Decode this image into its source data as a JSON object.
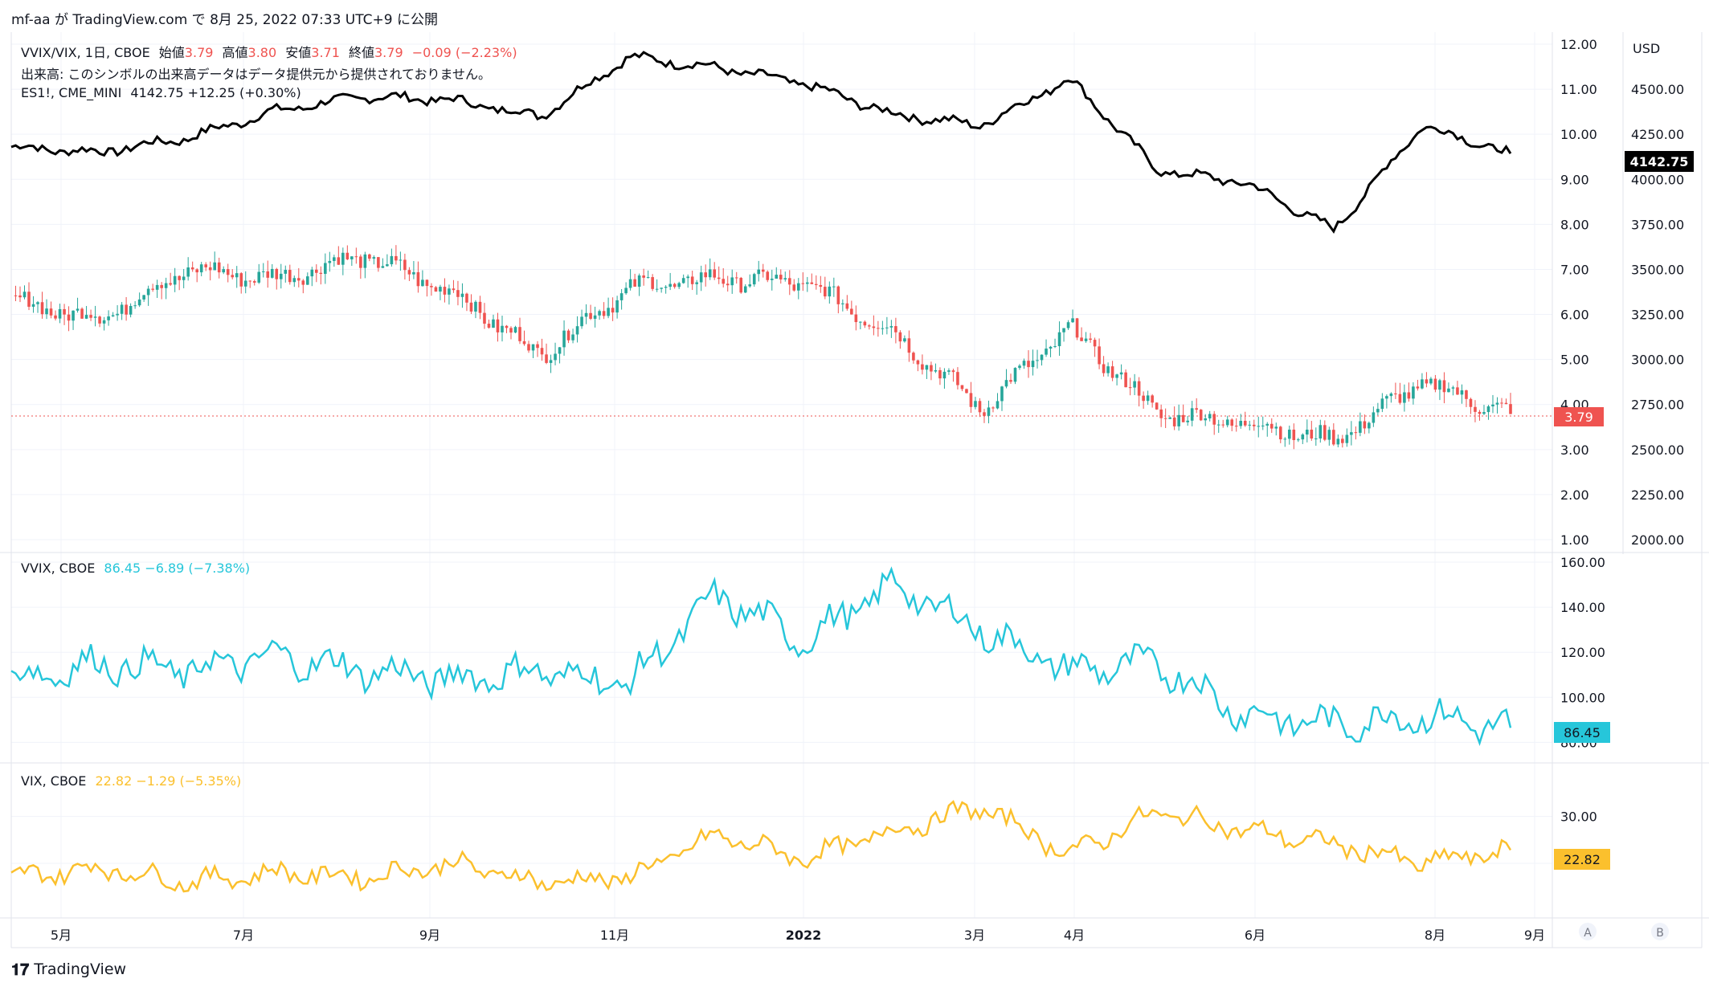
{
  "header": {
    "text": "mf-aa が TradingView.com で 8月 25, 2022 07:33 UTC+9 に公開"
  },
  "pane1": {
    "legend_title": "VVIX/VIX, 1日, CBOE",
    "ohlc": {
      "o_label": "始値",
      "o": "3.79",
      "h_label": "高値",
      "h": "3.80",
      "l_label": "安値",
      "l": "3.71",
      "c_label": "終値",
      "c": "3.79",
      "chg": "−0.09 (−2.23%)"
    },
    "volume_note": "出来高: このシンボルの出来高データはデータ提供元から提供されておりません。",
    "es_legend": "ES1!, CME_MINI",
    "es_value": "4142.75 +12.25 (+0.30%)",
    "last_label": "3.79",
    "es_last_label": "4142.75",
    "currency": "USD"
  },
  "pane2": {
    "legend": "VVIX, CBOE",
    "value": "86.45 −6.89 (−7.38%)",
    "last_label": "86.45"
  },
  "pane3": {
    "legend": "VIX, CBOE",
    "value": "22.82 −1.29 (−5.35%)",
    "last_label": "22.82"
  },
  "footer": {
    "brand": "TradingView",
    "btn_a": "A",
    "btn_b": "B"
  },
  "colors": {
    "up": "#26a69a",
    "down": "#ef5350",
    "es": "#000000",
    "vvix": "#26c6da",
    "vix": "#fbc02d",
    "grid": "#f0f3fa"
  },
  "chart_data": [
    {
      "type": "line",
      "title": "VVIX/VIX, 1日, CBOE (candlestick) + ES1!, CME_MINI",
      "series": [
        {
          "name": "VVIX/VIX",
          "x": [
            "2021-04",
            "2021-05",
            "2021-06",
            "2021-07",
            "2021-08",
            "2021-09",
            "2021-10",
            "2021-11",
            "2021-12",
            "2022-01",
            "2022-02",
            "2022-03",
            "2022-04",
            "2022-05",
            "2022-06",
            "2022-07",
            "2022-08",
            "2022-08-25"
          ],
          "values": [
            6.3,
            5.9,
            7.0,
            6.8,
            7.3,
            6.5,
            5.1,
            6.6,
            6.8,
            6.7,
            5.6,
            3.9,
            5.7,
            3.8,
            3.6,
            3.2,
            4.5,
            3.79
          ]
        },
        {
          "name": "ES1!",
          "x": [
            "2021-04",
            "2021-05",
            "2021-06",
            "2021-07",
            "2021-08",
            "2021-09",
            "2021-10",
            "2021-11",
            "2021-12",
            "2022-01",
            "2022-02",
            "2022-03",
            "2022-04",
            "2022-05",
            "2022-06",
            "2022-07",
            "2022-08",
            "2022-08-25"
          ],
          "values": [
            4180,
            4150,
            4230,
            4380,
            4460,
            4440,
            4350,
            4680,
            4620,
            4530,
            4360,
            4300,
            4560,
            4050,
            3980,
            3720,
            4300,
            4142.75
          ]
        }
      ],
      "y_left_ticks": [
        "1.00",
        "2.00",
        "3.00",
        "4.00",
        "5.00",
        "6.00",
        "7.00",
        "8.00",
        "9.00",
        "10.00",
        "11.00",
        "12.00"
      ],
      "y_right_ticks": [
        "2000.00",
        "2250.00",
        "2500.00",
        "2750.00",
        "3000.00",
        "3250.00",
        "3500.00",
        "3750.00",
        "4000.00",
        "4250.00",
        "4500.00",
        "4750.00"
      ],
      "ylim_left": [
        1,
        12
      ],
      "ylim_right": [
        2000,
        4750
      ]
    },
    {
      "type": "line",
      "series": [
        {
          "name": "VVIX",
          "x": [
            "2021-04",
            "2021-05",
            "2021-06",
            "2021-07",
            "2021-08",
            "2021-09",
            "2021-10",
            "2021-11",
            "2021-12",
            "2022-01",
            "2022-02",
            "2022-03",
            "2022-04",
            "2022-05",
            "2022-06",
            "2022-07",
            "2022-08",
            "2022-08-25"
          ],
          "values": [
            108,
            115,
            112,
            118,
            112,
            108,
            112,
            106,
            145,
            125,
            150,
            130,
            112,
            115,
            92,
            88,
            92,
            86.45
          ]
        }
      ],
      "y_ticks": [
        "80.00",
        "100.00",
        "120.00",
        "140.00",
        "160.00"
      ],
      "ylim": [
        78,
        160
      ]
    },
    {
      "type": "line",
      "series": [
        {
          "name": "VIX",
          "x": [
            "2021-04",
            "2021-05",
            "2021-06",
            "2021-07",
            "2021-08",
            "2021-09",
            "2021-10",
            "2021-11",
            "2021-12",
            "2022-01",
            "2022-02",
            "2022-03",
            "2022-04",
            "2022-05",
            "2022-06",
            "2022-07",
            "2022-08",
            "2022-08-25"
          ],
          "values": [
            17,
            19,
            16,
            18,
            17,
            20,
            16,
            17,
            26,
            21,
            27,
            32,
            22,
            31,
            27,
            24,
            20,
            22.82
          ]
        }
      ],
      "y_ticks": [
        "20.00",
        "30.00"
      ],
      "ylim": [
        14,
        38
      ]
    }
  ],
  "x_axis": {
    "labels": [
      "5月",
      "7月",
      "9月",
      "11月",
      "2022",
      "3月",
      "4月",
      "6月",
      "8月",
      "9月"
    ]
  }
}
